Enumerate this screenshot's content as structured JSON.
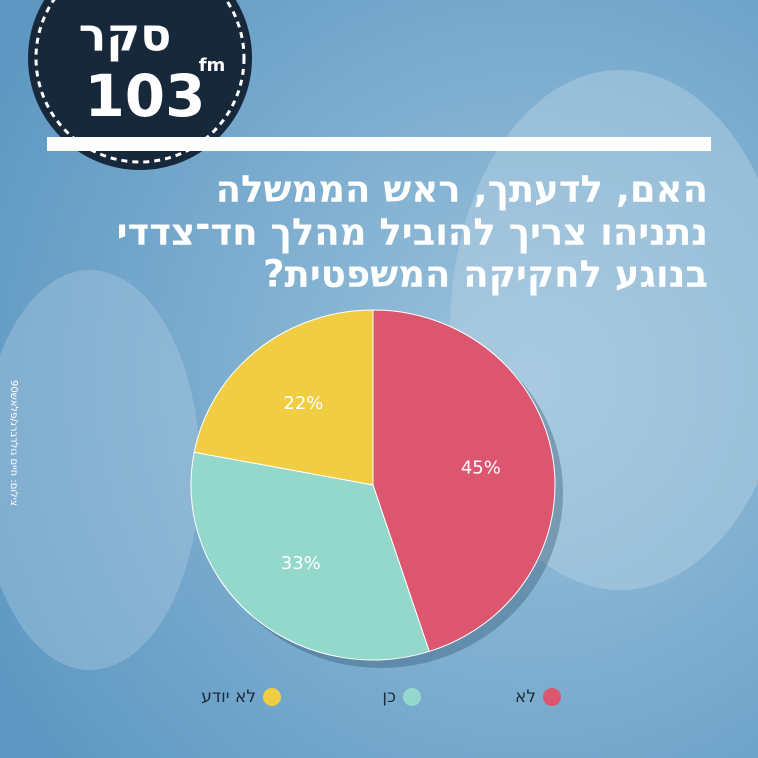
{
  "logo": {
    "word": "סקר",
    "number": "103",
    "suffix": "fm"
  },
  "credit": "צילום: חיים גולדברג/פלאש90",
  "chart_data": {
    "type": "pie",
    "title_lines": [
      "האם, לדעתך, ראש הממשלה",
      "נתניהו צריך להוביל מהלך חד־צדדי",
      "בנוגע לחקיקה המשפטית?"
    ],
    "categories": [
      "לא",
      "כן",
      "לא יודע"
    ],
    "values": [
      45,
      33,
      22
    ],
    "value_labels": [
      "45%",
      "33%",
      "22%"
    ],
    "colors": [
      "#dc5670",
      "#93d8cb",
      "#f0cd43"
    ],
    "legend": "bottom"
  }
}
